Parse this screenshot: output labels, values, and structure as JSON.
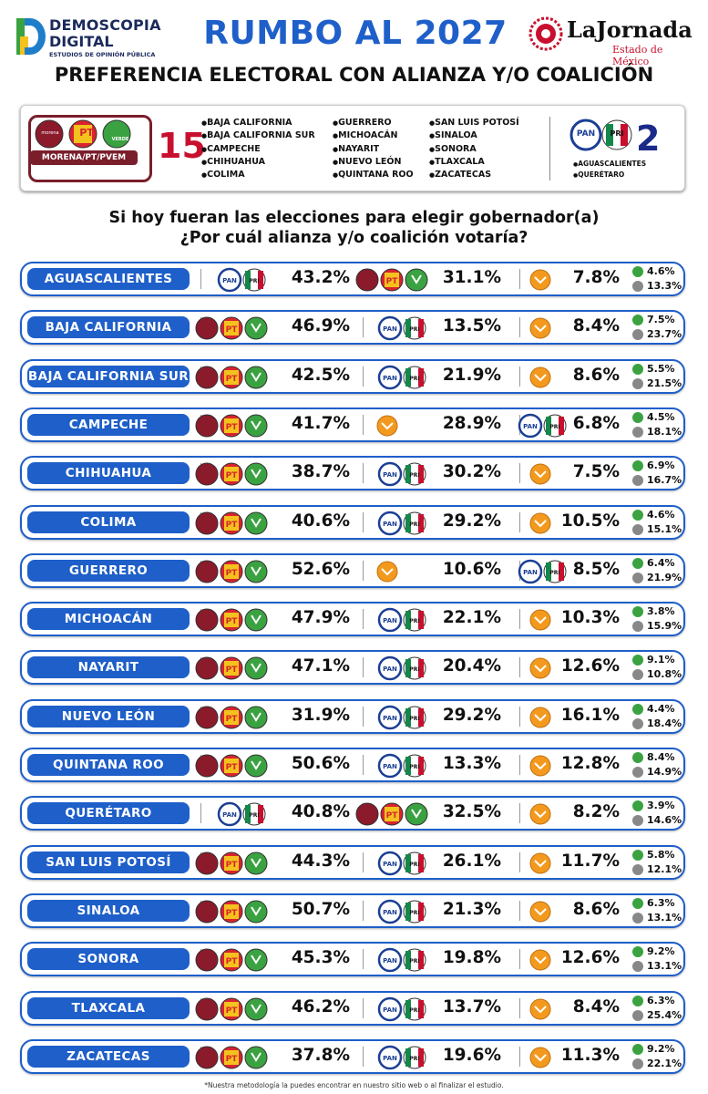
{
  "header": {
    "brand_left_line1": "DEMOSCOPIA",
    "brand_left_line2": "DIGITAL",
    "brand_left_line3": "ESTUDIOS DE OPINIÓN PÚBLICA",
    "title": "RUMBO AL 2027",
    "brand_right_name": "LaJornada",
    "brand_right_sub": "Estado de México",
    "subtitle": "PREFERENCIA ELECTORAL CON ALIANZA Y/O COALICIÓN"
  },
  "summary": {
    "coalition_label": "MORENA/PT/PVEM",
    "coalition_count": "15",
    "coalition_states_col1": [
      "BAJA CALIFORNIA",
      "BAJA CALIFORNIA SUR",
      "CAMPECHE",
      "CHIHUAHUA",
      "COLIMA"
    ],
    "coalition_states_col2": [
      "GUERRERO",
      "MICHOACÁN",
      "NAYARIT",
      "NUEVO LEÓN",
      "QUINTANA ROO"
    ],
    "coalition_states_col3": [
      "SAN LUIS POTOSÍ",
      "SINALOA",
      "SONORA",
      "TLAXCALA",
      "ZACATECAS"
    ],
    "opposition_count": "2",
    "opposition_states": [
      "AGUASCALIENTES",
      "QUERÉTARO"
    ]
  },
  "question": {
    "line1": "Si hoy fueran las elecciones para elegir gobernador(a)",
    "line2": "¿Por cuál alianza y/o coalición votaría?"
  },
  "logo_text": {
    "morena": "morena",
    "pt": "PT",
    "verde": "VERDE",
    "pan": "PAN",
    "pri": "PRI"
  },
  "colors": {
    "accent_blue": "#1e5fc9",
    "morena": "#8b1a2b",
    "pt": "#d9232e",
    "verde": "#3aa241",
    "pan": "#1b3f94",
    "pri": "#14884a",
    "mc": "#f39a1e"
  },
  "chart_data": {
    "type": "table",
    "columns": [
      "state",
      "first_coalition",
      "first_pct",
      "second_coalition",
      "second_pct",
      "third_coalition",
      "third_pct",
      "other_pct",
      "undecided_pct"
    ],
    "rows": [
      {
        "state": "AGUASCALIENTES",
        "c1": "PAN-PRI",
        "p1": "43.2%",
        "c2": "MORENA-PT-PVEM",
        "p2": "31.1%",
        "c3": "MC",
        "p3": "7.8%",
        "s1": "4.6%",
        "s2": "13.3%"
      },
      {
        "state": "BAJA CALIFORNIA",
        "c1": "MORENA-PT-PVEM",
        "p1": "46.9%",
        "c2": "PAN-PRI",
        "p2": "13.5%",
        "c3": "MC",
        "p3": "8.4%",
        "s1": "7.5%",
        "s2": "23.7%"
      },
      {
        "state": "BAJA CALIFORNIA SUR",
        "c1": "MORENA-PT-PVEM",
        "p1": "42.5%",
        "c2": "PAN-PRI",
        "p2": "21.9%",
        "c3": "MC",
        "p3": "8.6%",
        "s1": "5.5%",
        "s2": "21.5%"
      },
      {
        "state": "CAMPECHE",
        "c1": "MORENA-PT-PVEM",
        "p1": "41.7%",
        "c2": "MC",
        "p2": "28.9%",
        "c3": "PAN-PRI",
        "p3": "6.8%",
        "s1": "4.5%",
        "s2": "18.1%"
      },
      {
        "state": "CHIHUAHUA",
        "c1": "MORENA-PT-PVEM",
        "p1": "38.7%",
        "c2": "PAN-PRI",
        "p2": "30.2%",
        "c3": "MC",
        "p3": "7.5%",
        "s1": "6.9%",
        "s2": "16.7%"
      },
      {
        "state": "COLIMA",
        "c1": "MORENA-PT-PVEM",
        "p1": "40.6%",
        "c2": "PAN-PRI",
        "p2": "29.2%",
        "c3": "MC",
        "p3": "10.5%",
        "s1": "4.6%",
        "s2": "15.1%"
      },
      {
        "state": "GUERRERO",
        "c1": "MORENA-PT-PVEM",
        "p1": "52.6%",
        "c2": "MC",
        "p2": "10.6%",
        "c3": "PAN-PRI",
        "p3": "8.5%",
        "s1": "6.4%",
        "s2": "21.9%"
      },
      {
        "state": "MICHOACÁN",
        "c1": "MORENA-PT-PVEM",
        "p1": "47.9%",
        "c2": "PAN-PRI",
        "p2": "22.1%",
        "c3": "MC",
        "p3": "10.3%",
        "s1": "3.8%",
        "s2": "15.9%"
      },
      {
        "state": "NAYARIT",
        "c1": "MORENA-PT-PVEM",
        "p1": "47.1%",
        "c2": "PAN-PRI",
        "p2": "20.4%",
        "c3": "MC",
        "p3": "12.6%",
        "s1": "9.1%",
        "s2": "10.8%"
      },
      {
        "state": "NUEVO LEÓN",
        "c1": "MORENA-PT-PVEM",
        "p1": "31.9%",
        "c2": "PAN-PRI",
        "p2": "29.2%",
        "c3": "MC",
        "p3": "16.1%",
        "s1": "4.4%",
        "s2": "18.4%"
      },
      {
        "state": "QUINTANA ROO",
        "c1": "MORENA-PT-PVEM",
        "p1": "50.6%",
        "c2": "PAN-PRI",
        "p2": "13.3%",
        "c3": "MC",
        "p3": "12.8%",
        "s1": "8.4%",
        "s2": "14.9%"
      },
      {
        "state": "QUERÉTARO",
        "c1": "PAN-PRI",
        "p1": "40.8%",
        "c2": "MORENA-PT-PVEM",
        "p2": "32.5%",
        "c3": "MC",
        "p3": "8.2%",
        "s1": "3.9%",
        "s2": "14.6%"
      },
      {
        "state": "SAN LUIS POTOSÍ",
        "c1": "MORENA-PT-PVEM",
        "p1": "44.3%",
        "c2": "PAN-PRI",
        "p2": "26.1%",
        "c3": "MC",
        "p3": "11.7%",
        "s1": "5.8%",
        "s2": "12.1%"
      },
      {
        "state": "SINALOA",
        "c1": "MORENA-PT-PVEM",
        "p1": "50.7%",
        "c2": "PAN-PRI",
        "p2": "21.3%",
        "c3": "MC",
        "p3": "8.6%",
        "s1": "6.3%",
        "s2": "13.1%"
      },
      {
        "state": "SONORA",
        "c1": "MORENA-PT-PVEM",
        "p1": "45.3%",
        "c2": "PAN-PRI",
        "p2": "19.8%",
        "c3": "MC",
        "p3": "12.6%",
        "s1": "9.2%",
        "s2": "13.1%"
      },
      {
        "state": "TLAXCALA",
        "c1": "MORENA-PT-PVEM",
        "p1": "46.2%",
        "c2": "PAN-PRI",
        "p2": "13.7%",
        "c3": "MC",
        "p3": "8.4%",
        "s1": "6.3%",
        "s2": "25.4%"
      },
      {
        "state": "ZACATECAS",
        "c1": "MORENA-PT-PVEM",
        "p1": "37.8%",
        "c2": "PAN-PRI",
        "p2": "19.6%",
        "c3": "MC",
        "p3": "11.3%",
        "s1": "9.2%",
        "s2": "22.1%"
      }
    ]
  },
  "footnote": "*Nuestra metodología la puedes encontrar en nuestro sitio web o al finalizar el estudio."
}
